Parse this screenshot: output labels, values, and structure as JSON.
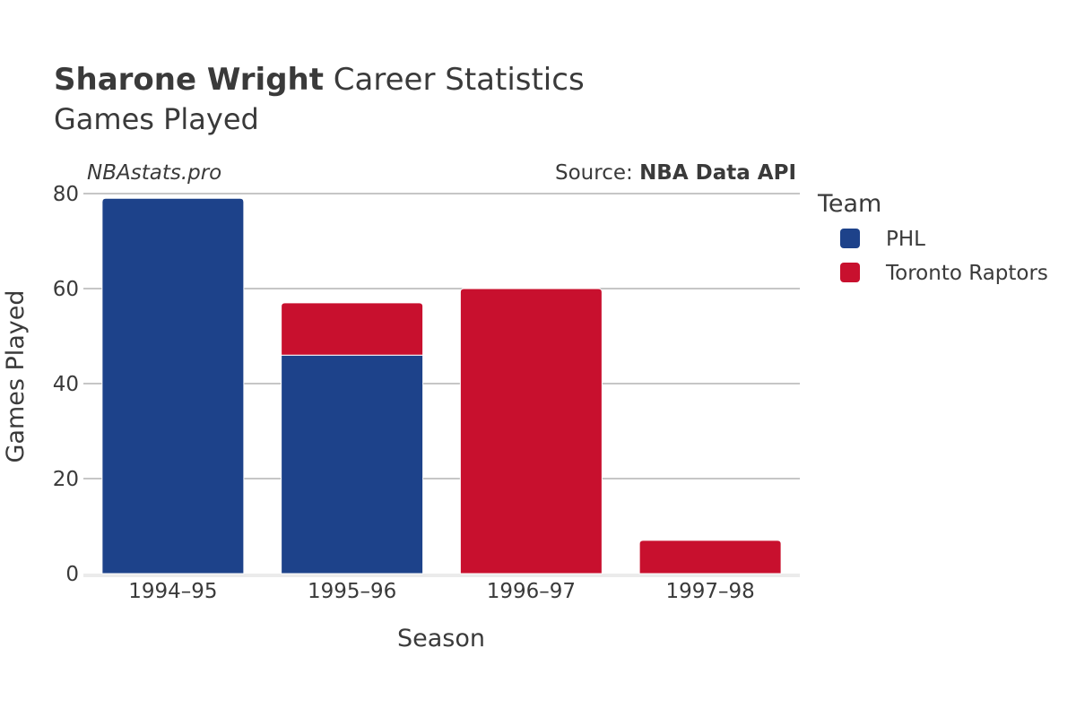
{
  "header": {
    "title_bold": "Sharone Wright",
    "title_rest": " Career Statistics",
    "subtitle": "Games Played",
    "watermark": "NBAstats.pro",
    "source_prefix": "Source: ",
    "source_bold": "NBA Data API"
  },
  "legend": {
    "title": "Team"
  },
  "chart_data": {
    "type": "bar",
    "stacked": true,
    "categories": [
      "1994–95",
      "1995–96",
      "1996–97",
      "1997–98"
    ],
    "series": [
      {
        "name": "PHL",
        "color": "#1d428a",
        "values": [
          79,
          46,
          0,
          0
        ]
      },
      {
        "name": "Toronto Raptors",
        "color": "#c8102e",
        "values": [
          0,
          11,
          60,
          7
        ]
      }
    ],
    "xlabel": "Season",
    "ylabel": "Games Played",
    "ylim": [
      0,
      80
    ],
    "yticks": [
      0,
      20,
      40,
      60,
      80
    ],
    "grid": true,
    "legend_position": "right"
  }
}
